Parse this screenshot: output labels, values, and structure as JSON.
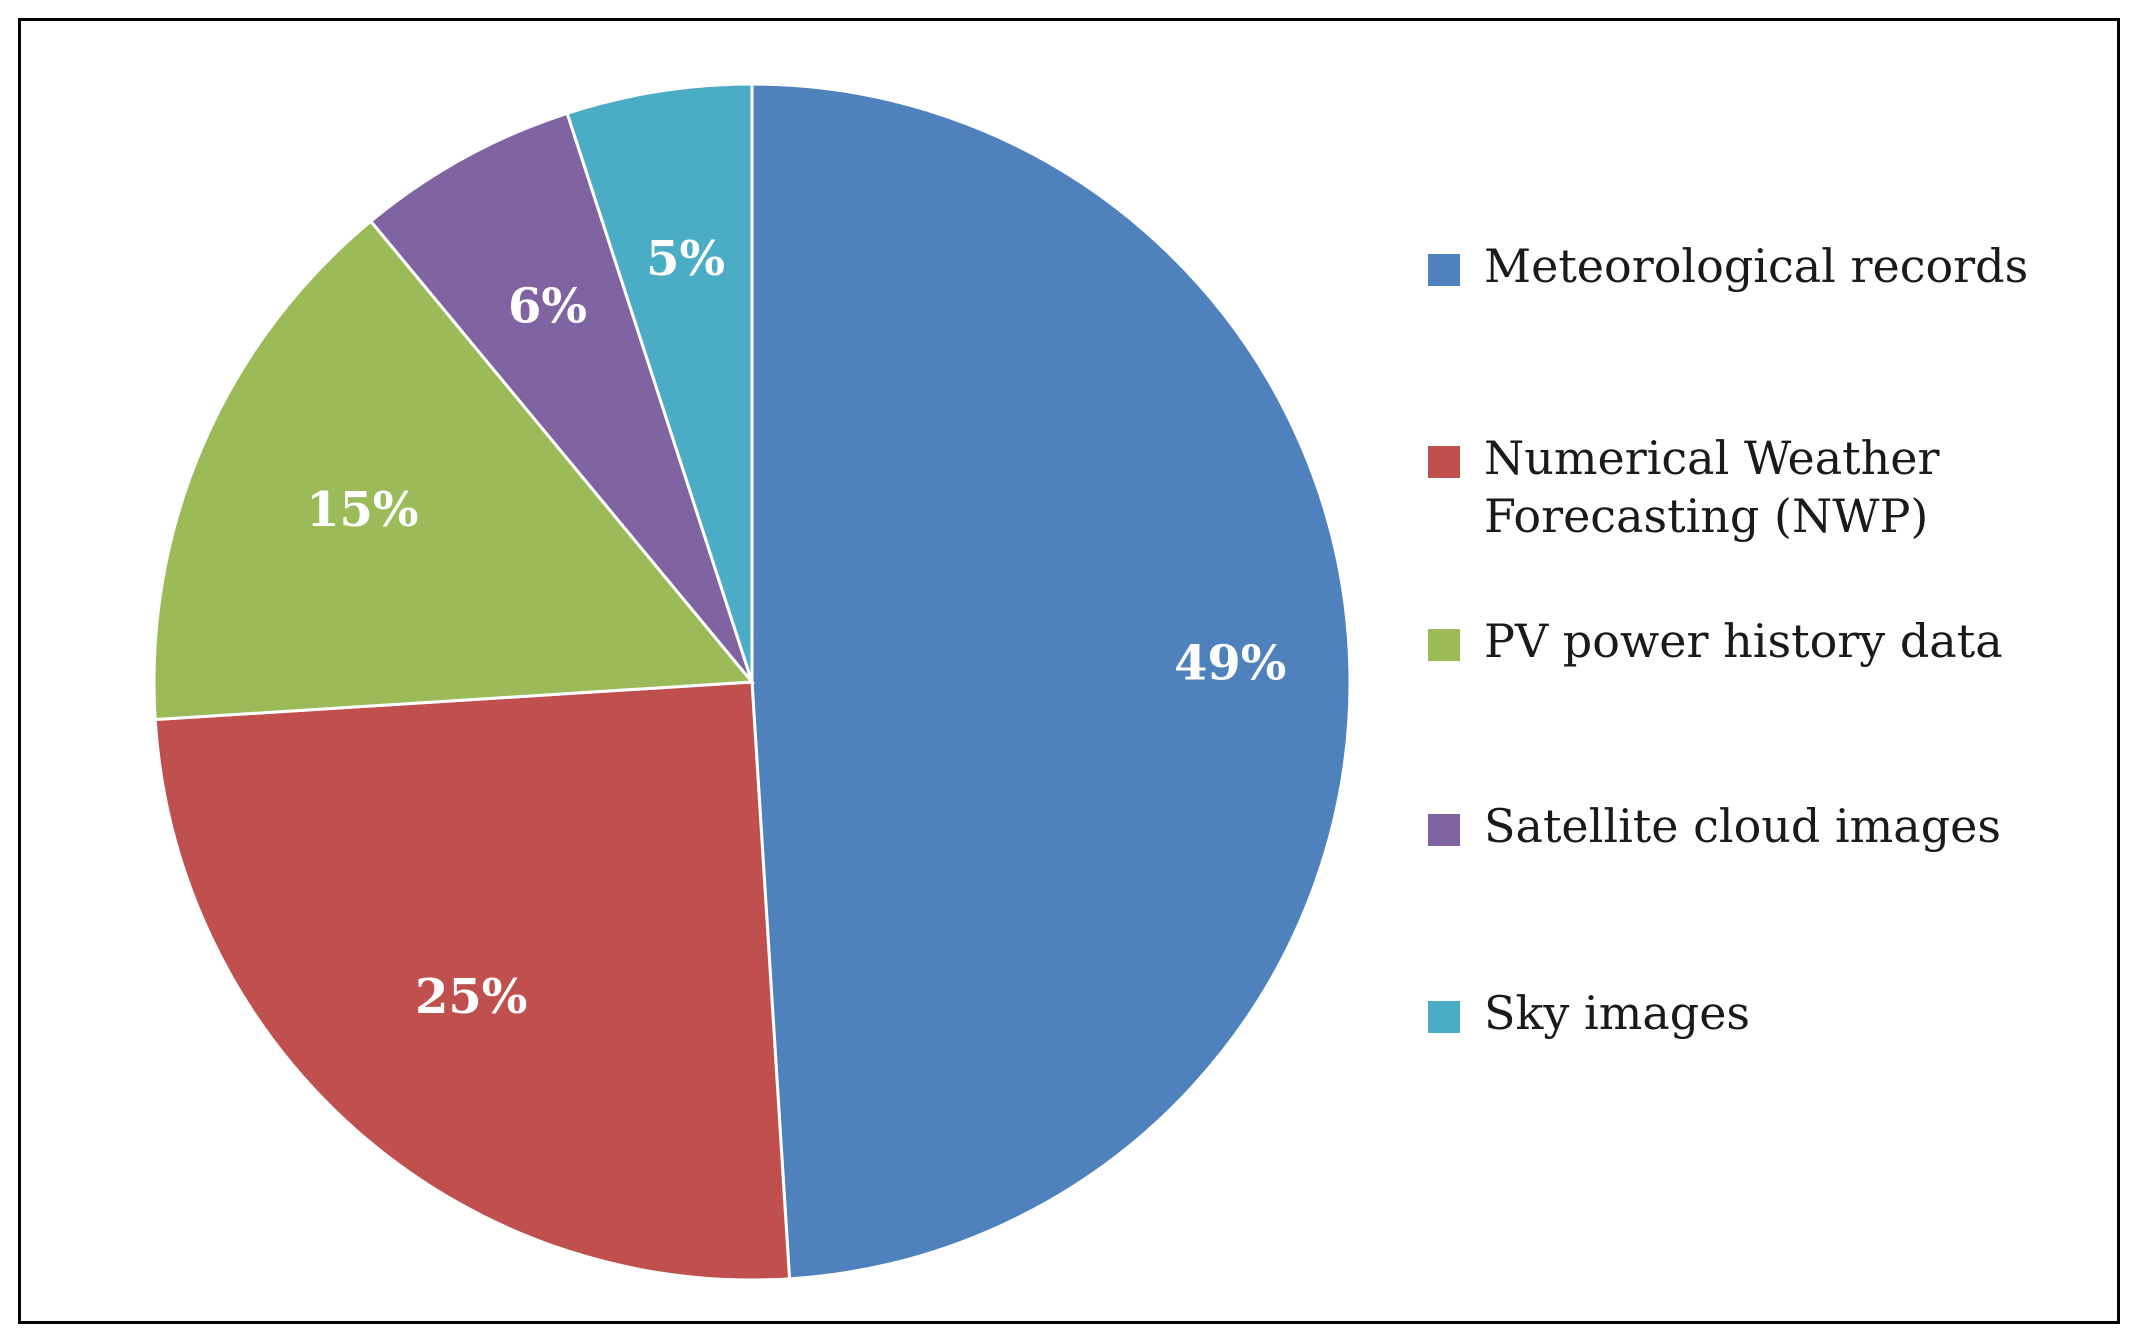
{
  "chart_data": {
    "type": "pie",
    "title": "",
    "legend_position": "right",
    "slices": [
      {
        "label": "Meteorological records",
        "value": 49,
        "display": "49%",
        "color": "#4f81bd"
      },
      {
        "label": "Numerical Weather Forecasting (NWP)",
        "label_lines": [
          "Numerical Weather",
          "Forecasting (NWP)"
        ],
        "value": 25,
        "display": "25%",
        "color": "#c0504d"
      },
      {
        "label": "PV power history data",
        "value": 15,
        "display": "15%",
        "color": "#9bbb59"
      },
      {
        "label": "Satellite cloud images",
        "value": 6,
        "display": "6%",
        "color": "#8064a2"
      },
      {
        "label": "Sky images",
        "value": 5,
        "display": "5%",
        "color": "#4bacc6"
      }
    ]
  }
}
